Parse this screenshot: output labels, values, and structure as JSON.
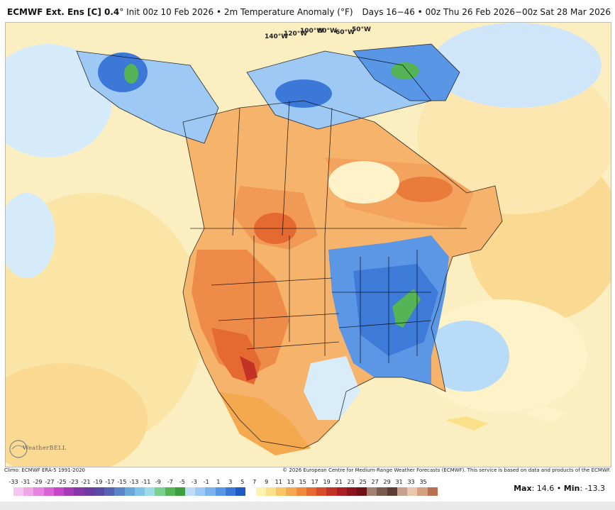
{
  "header": {
    "model": "ECMWF Ext. Ens [C] 0.4",
    "degree": "°",
    "init": "Init 00z 10 Feb 2026",
    "bullet": "•",
    "product": "2m Temperature Anomaly (°F)",
    "valid": "Days 16−46 • 00z Thu 26 Feb 2026−00z Sat 28 Mar 2026"
  },
  "map": {
    "longitude_labels": [
      "140°W",
      "120°W",
      "100°W",
      "80°W",
      "60°W",
      "50°W"
    ]
  },
  "footer": {
    "climo": "Climo: ECMWF ERA-5 1991-2020",
    "copyright": "© 2026 European Centre for Medium-Range Weather Forecasts (ECMWF). This service is based on data and products of the ECMWF."
  },
  "logo": {
    "text": "WeatherBELL"
  },
  "scale": {
    "labels": [
      "-33",
      "-31",
      "-29",
      "-27",
      "-25",
      "-23",
      "-21",
      "-19",
      "-17",
      "-15",
      "-13",
      "-11",
      "-9",
      "-7",
      "-5",
      "-3",
      "-1",
      "1",
      "3",
      "5",
      "7",
      "9",
      "11",
      "13",
      "15",
      "17",
      "19",
      "21",
      "23",
      "25",
      "27",
      "29",
      "31",
      "33",
      "35"
    ],
    "colors": [
      "#f7c6f0",
      "#f0a6e8",
      "#e684df",
      "#d964d4",
      "#c546c7",
      "#a43ab7",
      "#8837a9",
      "#6b3d9f",
      "#5b4aa3",
      "#5463b4",
      "#5c85c9",
      "#6aa7dd",
      "#7fc3e8",
      "#9ddbe8",
      "#7ad08f",
      "#55b455",
      "#3d9c3d",
      "#c0dbf7",
      "#9ec9f5",
      "#7bb3f0",
      "#5997e6",
      "#3b78d8",
      "#1f59c2",
      "#ffffff",
      "#fdf2b0",
      "#fbe08a",
      "#f8c468",
      "#f5a94f",
      "#ef8a3d",
      "#e56a32",
      "#d64c2c",
      "#c23227",
      "#a91f23",
      "#8b151d",
      "#6f0f16",
      "#a08070",
      "#7a5a4a",
      "#5a3c30",
      "#c8a090",
      "#e8c6b0",
      "#d4a080",
      "#b87050"
    ],
    "max_label": "Max",
    "max_value": ": 14.6",
    "sep": " • ",
    "min_label": "Min",
    "min_value": ": -13.3"
  }
}
